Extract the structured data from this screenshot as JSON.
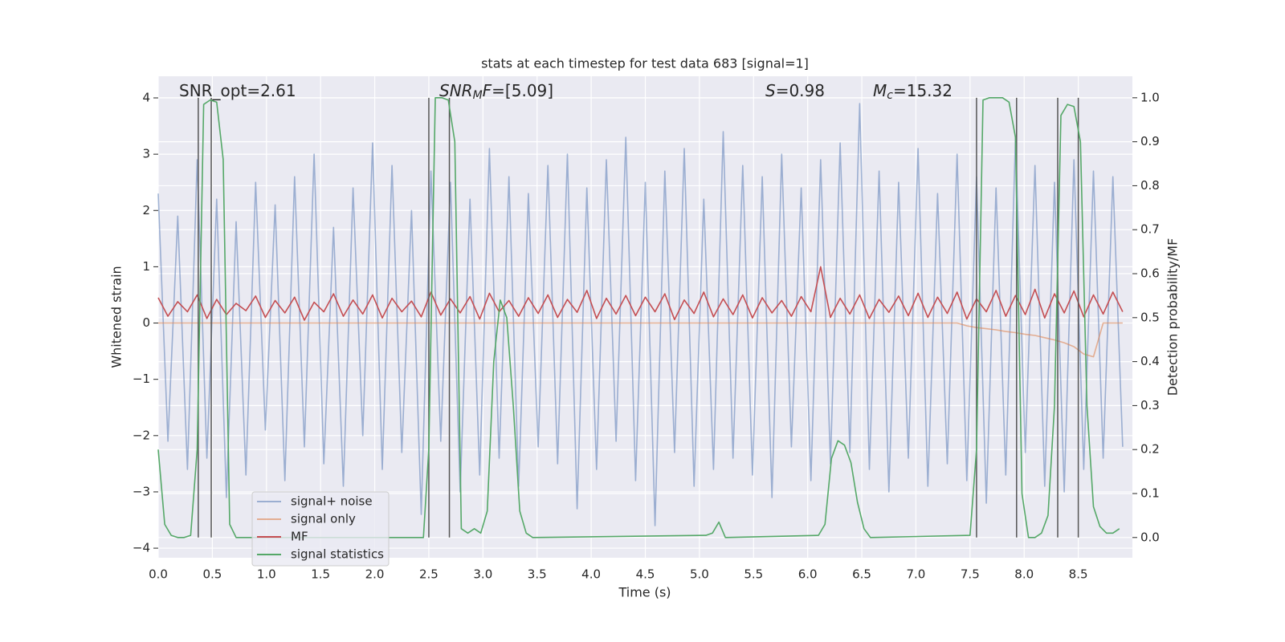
{
  "chart_data": {
    "type": "line",
    "title": "stats at each timestep for test data 683 [signal=1]",
    "xlabel": "Time (s)",
    "ylabel": "Whitened strain",
    "y2label": "Detection probability/MF",
    "annotations": [
      [
        {
          "text": "SNR_opt=2.61",
          "style": "normal"
        }
      ],
      [
        {
          "text": "SNR",
          "style": "italic"
        },
        {
          "text": "M",
          "style": "sub"
        },
        {
          "text": "F",
          "style": "italic"
        },
        {
          "text": "=[5.09]",
          "style": "normal"
        }
      ],
      [
        {
          "text": "S",
          "style": "italic"
        },
        {
          "text": "=0.98",
          "style": "normal"
        }
      ],
      [
        {
          "text": "M",
          "style": "italic"
        },
        {
          "text": "c",
          "style": "sub"
        },
        {
          "text": "=15.32",
          "style": "normal"
        }
      ]
    ],
    "xlim": [
      0,
      9
    ],
    "ylim": [
      -4.17,
      4.385
    ],
    "y2lim": [
      -0.046,
      1.049
    ],
    "xticks": [
      {
        "value": 0,
        "label": "0.0"
      },
      0.5,
      {
        "value": 1,
        "label": "1.0"
      },
      1.5,
      {
        "value": 2,
        "label": "2.0"
      },
      2.5,
      {
        "value": 3,
        "label": "3.0"
      },
      3.5,
      {
        "value": 4,
        "label": "4.0"
      },
      4.5,
      {
        "value": 5,
        "label": "5.0"
      },
      5.5,
      {
        "value": 6,
        "label": "6.0"
      },
      6.5,
      {
        "value": 7,
        "label": "7.0"
      },
      7.5,
      {
        "value": 8,
        "label": "8.0"
      },
      8.5
    ],
    "yticks": [
      {
        "value": -4,
        "label": "−4"
      },
      {
        "value": -3,
        "label": "−3"
      },
      {
        "value": -2,
        "label": "−2"
      },
      {
        "value": -1,
        "label": "−1"
      },
      0,
      1,
      2,
      3,
      4
    ],
    "y2ticks": [
      {
        "value": 0,
        "label": "0.0"
      },
      0.1,
      0.2,
      0.3,
      0.4,
      0.5,
      0.6,
      0.7,
      0.8,
      0.9,
      {
        "value": 1,
        "label": "1.0"
      }
    ],
    "grid": true,
    "legend": "lower left",
    "vlines": [
      0.37,
      0.49,
      2.5,
      2.69,
      7.56,
      7.93,
      8.31,
      8.5
    ],
    "vline_color": "#555555",
    "x": [
      0,
      0.09,
      0.18,
      0.27,
      0.36,
      0.45,
      0.54,
      0.63,
      0.72,
      0.81,
      0.9,
      0.99,
      1.08,
      1.17,
      1.26,
      1.35,
      1.44,
      1.53,
      1.62,
      1.71,
      1.8,
      1.89,
      1.98,
      2.07,
      2.16,
      2.25,
      2.34,
      2.43,
      2.52,
      2.61,
      2.7,
      2.79,
      2.88,
      2.97,
      3.06,
      3.15,
      3.24,
      3.33,
      3.42,
      3.51,
      3.6,
      3.69,
      3.78,
      3.87,
      3.96,
      4.05,
      4.14,
      4.23,
      4.32,
      4.41,
      4.5,
      4.59,
      4.68,
      4.77,
      4.86,
      4.95,
      5.04,
      5.13,
      5.22,
      5.31,
      5.4,
      5.49,
      5.58,
      5.67,
      5.76,
      5.85,
      5.94,
      6.03,
      6.12,
      6.21,
      6.3,
      6.39,
      6.48,
      6.57,
      6.66,
      6.75,
      6.84,
      6.93,
      7.02,
      7.11,
      7.2,
      7.29,
      7.38,
      7.47,
      7.56,
      7.65,
      7.74,
      7.83,
      7.92,
      8.01,
      8.1,
      8.19,
      8.28,
      8.37,
      8.46,
      8.55,
      8.64,
      8.73,
      8.82,
      8.91
    ],
    "series": [
      {
        "name": "signal+ noise",
        "color": "#4c72b0",
        "alpha": 0.5,
        "axis": "y",
        "values": [
          2.3,
          -2.1,
          1.9,
          -2.6,
          2.9,
          -2.4,
          2.2,
          -3.1,
          1.8,
          -2.7,
          2.5,
          -1.9,
          2.1,
          -2.8,
          2.6,
          -2.2,
          3.0,
          -2.5,
          1.7,
          -2.9,
          2.4,
          -2.0,
          3.2,
          -2.6,
          2.8,
          -2.3,
          2.0,
          -3.4,
          2.7,
          -2.1,
          2.5,
          -3.0,
          2.2,
          -2.7,
          3.1,
          -2.4,
          2.6,
          -2.9,
          2.3,
          -2.2,
          2.8,
          -2.5,
          3.0,
          -3.3,
          2.4,
          -2.6,
          2.9,
          -2.1,
          3.3,
          -2.8,
          2.5,
          -3.6,
          2.7,
          -2.3,
          3.1,
          -2.9,
          2.2,
          -2.6,
          3.4,
          -2.4,
          2.8,
          -2.7,
          2.6,
          -3.1,
          3.0,
          -2.2,
          2.4,
          -2.8,
          2.9,
          -2.5,
          3.2,
          -2.3,
          3.9,
          -2.6,
          2.7,
          -3.0,
          2.5,
          -2.4,
          3.1,
          -2.9,
          2.3,
          -2.5,
          3.0,
          -2.8,
          2.6,
          -3.2,
          2.4,
          -2.7,
          3.3,
          -2.3,
          2.8,
          -2.9,
          2.5,
          -3.0,
          2.9,
          -2.6,
          2.7,
          -2.4,
          2.6,
          -2.2
        ]
      },
      {
        "name": "signal only",
        "color": "#dd8452",
        "alpha": 0.6,
        "axis": "y",
        "values": [
          0,
          0,
          0,
          0,
          0,
          0,
          0,
          0,
          0,
          0,
          0,
          0,
          0,
          0,
          0,
          0,
          0,
          0,
          0,
          0,
          0,
          0,
          0,
          0,
          0,
          0,
          0,
          0,
          0,
          0,
          0,
          0,
          0,
          0,
          0,
          0,
          0,
          0,
          0,
          0,
          0,
          0,
          0,
          0,
          0,
          0,
          0,
          0,
          0,
          0,
          0,
          0,
          0,
          0,
          0,
          0,
          0,
          0,
          0,
          0,
          0,
          0,
          0,
          0,
          0,
          0,
          0,
          0,
          0,
          0,
          0,
          0,
          0,
          0,
          0,
          0,
          0,
          0,
          0,
          0,
          0,
          0,
          0,
          -0.05,
          -0.08,
          -0.1,
          -0.12,
          -0.15,
          -0.17,
          -0.2,
          -0.22,
          -0.26,
          -0.3,
          -0.35,
          -0.42,
          -0.55,
          -0.6,
          0,
          0,
          0
        ]
      },
      {
        "name": "MF",
        "color": "#c44e52",
        "alpha": 1,
        "axis": "y",
        "values": [
          0.45,
          0.12,
          0.38,
          0.2,
          0.5,
          0.08,
          0.42,
          0.15,
          0.35,
          0.22,
          0.48,
          0.1,
          0.4,
          0.18,
          0.46,
          0.05,
          0.37,
          0.2,
          0.52,
          0.12,
          0.41,
          0.16,
          0.5,
          0.09,
          0.44,
          0.2,
          0.39,
          0.11,
          0.55,
          0.14,
          0.43,
          0.18,
          0.47,
          0.07,
          0.53,
          0.2,
          0.4,
          0.12,
          0.45,
          0.17,
          0.5,
          0.1,
          0.42,
          0.19,
          0.58,
          0.08,
          0.44,
          0.16,
          0.49,
          0.13,
          0.46,
          0.2,
          0.52,
          0.06,
          0.41,
          0.17,
          0.55,
          0.11,
          0.43,
          0.15,
          0.5,
          0.09,
          0.45,
          0.18,
          0.4,
          0.12,
          0.47,
          0.2,
          1.0,
          0.1,
          0.44,
          0.16,
          0.5,
          0.08,
          0.42,
          0.19,
          0.48,
          0.13,
          0.53,
          0.1,
          0.46,
          0.17,
          0.55,
          0.07,
          0.43,
          0.2,
          0.58,
          0.12,
          0.49,
          0.15,
          0.6,
          0.09,
          0.52,
          0.18,
          0.57,
          0.11,
          0.5,
          0.16,
          0.55,
          0.2
        ]
      },
      {
        "name": "signal statistics",
        "color": "#55a868",
        "alpha": 1,
        "axis": "y2",
        "x": [
          0,
          0.06,
          0.12,
          0.18,
          0.24,
          0.3,
          0.36,
          0.42,
          0.48,
          0.54,
          0.6,
          0.66,
          0.72,
          2.45,
          2.5,
          2.56,
          2.62,
          2.68,
          2.74,
          2.8,
          2.86,
          2.92,
          2.98,
          3.04,
          3.1,
          3.16,
          3.22,
          3.28,
          3.34,
          3.4,
          3.46,
          5.06,
          5.12,
          5.18,
          5.24,
          6.1,
          6.16,
          6.22,
          6.28,
          6.34,
          6.4,
          6.46,
          6.52,
          6.58,
          7.5,
          7.56,
          7.62,
          7.68,
          7.74,
          7.8,
          7.86,
          7.92,
          7.98,
          8.04,
          8.1,
          8.16,
          8.22,
          8.28,
          8.34,
          8.4,
          8.46,
          8.52,
          8.58,
          8.64,
          8.7,
          8.76,
          8.82,
          8.88
        ],
        "values": [
          0.2,
          0.03,
          0.005,
          0,
          0,
          0.005,
          0.2,
          0.985,
          0.995,
          0.99,
          0.86,
          0.03,
          0,
          0,
          0.2,
          1,
          1,
          0.995,
          0.9,
          0.02,
          0.01,
          0.02,
          0.01,
          0.06,
          0.4,
          0.54,
          0.5,
          0.3,
          0.06,
          0.01,
          0,
          0.005,
          0.01,
          0.035,
          0,
          0.005,
          0.03,
          0.18,
          0.22,
          0.21,
          0.17,
          0.08,
          0.02,
          0,
          0.005,
          0.2,
          0.995,
          1,
          1,
          1,
          0.99,
          0.91,
          0.1,
          0,
          0,
          0.01,
          0.05,
          0.3,
          0.96,
          0.985,
          0.98,
          0.9,
          0.3,
          0.07,
          0.025,
          0.01,
          0.01,
          0.02
        ]
      }
    ]
  }
}
